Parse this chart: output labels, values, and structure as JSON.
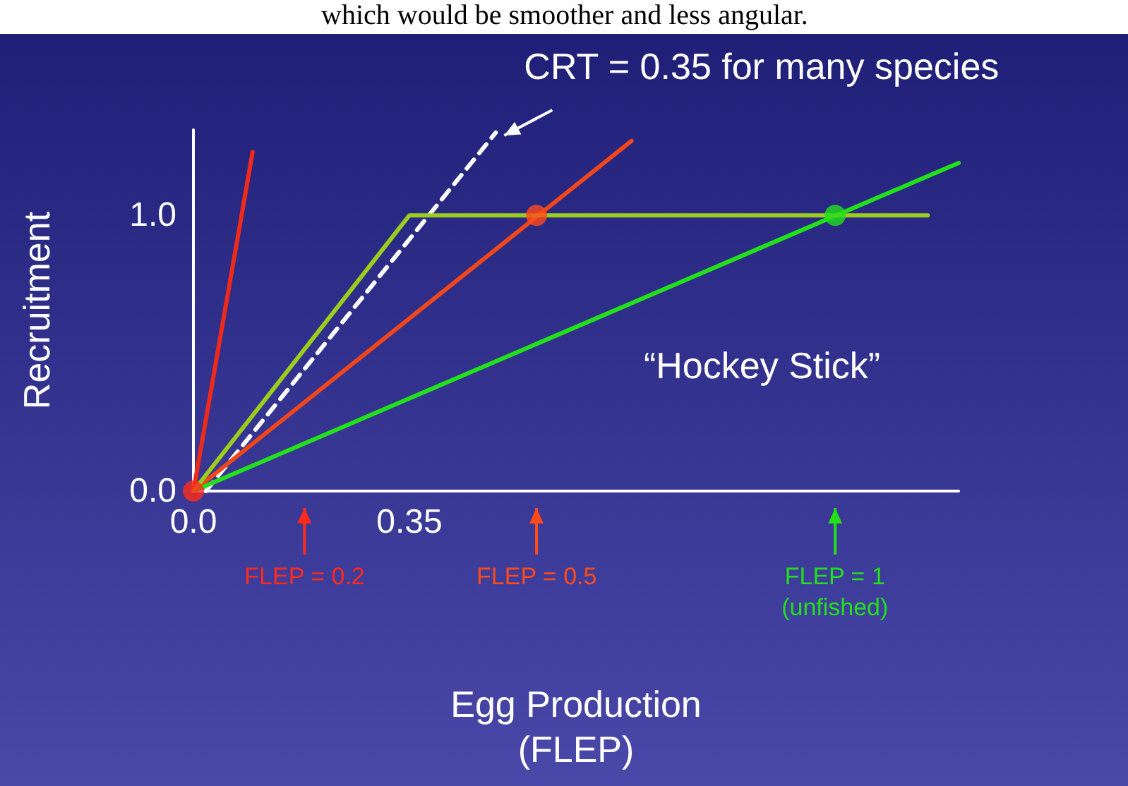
{
  "chart_data": {
    "type": "line",
    "xlabel": "Egg Production\n(FLEP)",
    "ylabel": "Recruitment",
    "xlim": [
      0,
      1.24
    ],
    "ylim": [
      0,
      1.31
    ],
    "xticks": [
      {
        "value": 0,
        "label": "0.0"
      },
      0.35
    ],
    "yticks": [
      {
        "value": 0,
        "label": "0.0"
      },
      {
        "value": 1,
        "label": "1.0"
      }
    ],
    "grid": false,
    "marker": "none",
    "series": [
      {
        "color": "#ee2a1a",
        "x": [
          0,
          0.096
        ],
        "values": [
          0,
          1.23
        ]
      },
      {
        "color": "#ffffff",
        "line_style": "dashed",
        "x": [
          0.02,
          0.49
        ],
        "values": [
          0,
          1.3
        ]
      },
      {
        "color": "#f0461a",
        "x": [
          0,
          0.71
        ],
        "values": [
          0,
          1.27
        ]
      },
      {
        "color": "#22e01a",
        "x": [
          0,
          1.24
        ],
        "values": [
          0,
          1.19
        ]
      },
      {
        "color": "#9ccc1c",
        "x": [
          0,
          0.35,
          1.19
        ],
        "values": [
          0,
          1,
          1
        ]
      },
      {
        "type": "scatter",
        "marker": "circle",
        "color": "#ff2a1a",
        "x": [
          0
        ],
        "values": [
          0
        ]
      },
      {
        "type": "scatter",
        "marker": "circle",
        "color": "#ff4a1a",
        "x": [
          0.556
        ],
        "values": [
          1
        ]
      },
      {
        "type": "scatter",
        "marker": "circle",
        "color": "#22e01a",
        "x": [
          1.04
        ],
        "values": [
          1
        ]
      }
    ],
    "annotations": [
      "which would be smoother and less angular.",
      "“Hockey Stick”",
      {
        "text": "CRT = 0.35 for many species",
        "x": 0.49,
        "y": 1.3
      },
      "FLEP = 0.2",
      "FLEP = 0.5",
      "FLEP = 1\n(unfished)"
    ]
  }
}
